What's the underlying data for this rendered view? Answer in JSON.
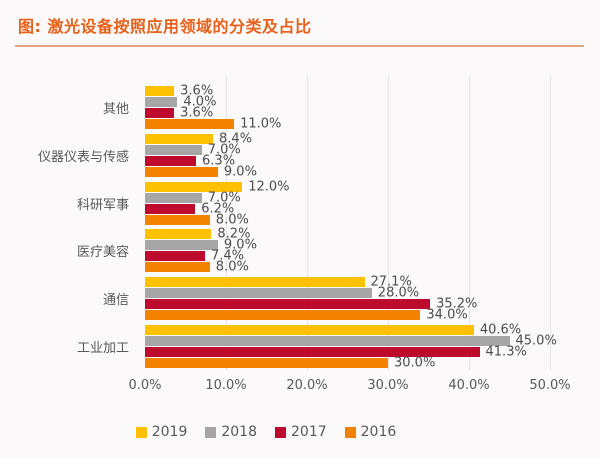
{
  "title": "图: 激光设备按照应用领域的分类及占比",
  "accent": {
    "title_color": "#e8611a",
    "divider_color": "#d98a52",
    "label_color": "#4d4d4d",
    "axis_text_color": "#595959",
    "gridline_color": "#e6e3e3",
    "background_color": "#fbf9f9"
  },
  "chart_data": {
    "type": "bar",
    "orientation": "horizontal",
    "title": "图: 激光设备按照应用领域的分类及占比",
    "categories": [
      "其他",
      "仪器仪表与传感",
      "科研军事",
      "医疗美容",
      "通信",
      "工业加工"
    ],
    "series": [
      {
        "name": "2019",
        "color": "#ffc000",
        "values": [
          3.6,
          8.4,
          12.0,
          8.2,
          27.1,
          40.6
        ],
        "labels": [
          "3.6%",
          "8.4%",
          "12.0%",
          "8.2%",
          "27.1%",
          "40.6%"
        ]
      },
      {
        "name": "2018",
        "color": "#a6a6a6",
        "values": [
          4.0,
          7.0,
          7.0,
          9.0,
          28.0,
          45.0
        ],
        "labels": [
          "4.0%",
          "7.0%",
          "7.0%",
          "9.0%",
          "28.0%",
          "45.0%"
        ]
      },
      {
        "name": "2017",
        "color": "#be0a2c",
        "values": [
          3.6,
          6.3,
          6.2,
          7.4,
          35.2,
          41.3
        ],
        "labels": [
          "3.6%",
          "6.3%",
          "6.2%",
          "7.4%",
          "35.2%",
          "41.3%"
        ]
      },
      {
        "name": "2016",
        "color": "#f28200",
        "values": [
          11.0,
          9.0,
          8.0,
          8.0,
          34.0,
          30.0
        ],
        "labels": [
          "11.0%",
          "9.0%",
          "8.0%",
          "8.0%",
          "34.0%",
          "30.0%"
        ]
      }
    ],
    "xlim": [
      0,
      50
    ],
    "x_ticks": [
      "0.0%",
      "10.0%",
      "20.0%",
      "30.0%",
      "40.0%",
      "50.0%"
    ],
    "value_suffix": "%",
    "grid": true,
    "legend_position": "bottom"
  }
}
